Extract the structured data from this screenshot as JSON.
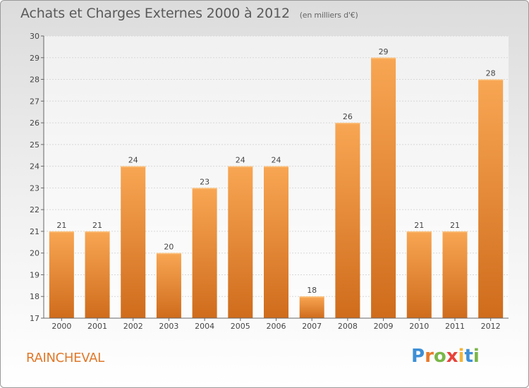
{
  "header": {
    "title": "Achats et Charges Externes 2000 à 2012",
    "unit": "(en milliers d'€)"
  },
  "footer": {
    "place": "RAINCHEVAL",
    "logo_letters": [
      "P",
      "r",
      "o",
      "x",
      "i",
      "t",
      "i"
    ],
    "logo_colors": [
      "#3d8fd6",
      "#e87a2a",
      "#7ab648",
      "#e8423a",
      "#f2b53a",
      "#3d8fd6",
      "#7ab648"
    ]
  },
  "colors": {
    "bar_light": "#f8a653",
    "bar_dark": "#cf6c1c",
    "axis": "#666666",
    "grid": "#d7d7d7"
  },
  "chart_data": {
    "type": "bar",
    "categories": [
      "2000",
      "2001",
      "2002",
      "2003",
      "2004",
      "2005",
      "2006",
      "2007",
      "2008",
      "2009",
      "2010",
      "2011",
      "2012"
    ],
    "values": [
      21,
      21,
      24,
      20,
      23,
      24,
      24,
      18,
      26,
      29,
      21,
      21,
      28
    ],
    "ylim": [
      17,
      30
    ],
    "yticks": [
      17,
      18,
      19,
      20,
      21,
      22,
      23,
      24,
      25,
      26,
      27,
      28,
      29,
      30
    ],
    "grid": true,
    "data_labels": true
  }
}
